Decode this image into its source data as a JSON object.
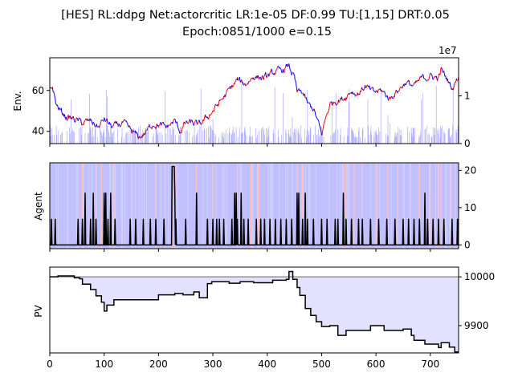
{
  "figure": {
    "title_line1": "[HES] RL:ddpg Net:actorcritic LR:1e-05 DF:0.99 TU:[1,15] DRT:0.05",
    "title_line2": "Epoch:0851/1000 e=0.15"
  },
  "colors": {
    "price_up": "#ff0000",
    "price_down": "#0000ff",
    "volume": "#aaaaff",
    "agent_bg": "#c0c0ff",
    "agent_stripe": "#ffc0c0",
    "agent_line": "#000000",
    "pv_line": "#000000",
    "pv_fill": "#e2e2ff",
    "baseline": "#808080"
  },
  "chart_data": [
    {
      "type": "line",
      "name": "env",
      "ylabel": "Env.",
      "xlim": [
        0,
        752
      ],
      "ylim": [
        34,
        76
      ],
      "yticks": [
        "40",
        "60"
      ],
      "y2ticks": [
        "0",
        "1"
      ],
      "y2_offset_label": "1e7",
      "y2lim": [
        0,
        18000000
      ],
      "price_anchors": [
        [
          0,
          61
        ],
        [
          5,
          62
        ],
        [
          12,
          53
        ],
        [
          20,
          50
        ],
        [
          30,
          47
        ],
        [
          45,
          46
        ],
        [
          60,
          44
        ],
        [
          75,
          45
        ],
        [
          90,
          42
        ],
        [
          100,
          46
        ],
        [
          115,
          42
        ],
        [
          135,
          44
        ],
        [
          150,
          40
        ],
        [
          165,
          37
        ],
        [
          175,
          39
        ],
        [
          190,
          44
        ],
        [
          200,
          43
        ],
        [
          215,
          42
        ],
        [
          230,
          45
        ],
        [
          240,
          40
        ],
        [
          250,
          44
        ],
        [
          262,
          44
        ],
        [
          275,
          43
        ],
        [
          290,
          47
        ],
        [
          300,
          50
        ],
        [
          315,
          55
        ],
        [
          330,
          60
        ],
        [
          345,
          65
        ],
        [
          360,
          63
        ],
        [
          375,
          67
        ],
        [
          395,
          66
        ],
        [
          415,
          69
        ],
        [
          430,
          70
        ],
        [
          440,
          72
        ],
        [
          450,
          66
        ],
        [
          455,
          59
        ],
        [
          465,
          59
        ],
        [
          475,
          53
        ],
        [
          485,
          51
        ],
        [
          495,
          43
        ],
        [
          500,
          38
        ],
        [
          505,
          44
        ],
        [
          515,
          53
        ],
        [
          525,
          55
        ],
        [
          540,
          56
        ],
        [
          555,
          60
        ],
        [
          565,
          58
        ],
        [
          580,
          62
        ],
        [
          595,
          59
        ],
        [
          610,
          60
        ],
        [
          625,
          56
        ],
        [
          640,
          60
        ],
        [
          655,
          64
        ],
        [
          670,
          62
        ],
        [
          685,
          66
        ],
        [
          700,
          67
        ],
        [
          715,
          66
        ],
        [
          720,
          70
        ],
        [
          730,
          66
        ],
        [
          740,
          61
        ],
        [
          752,
          67
        ]
      ],
      "volume_note": "volume bars on secondary axis, mostly 0-4e6 with spikes up to ~1.3e7"
    },
    {
      "type": "line",
      "name": "agent",
      "ylabel": "Agent",
      "xlim": [
        0,
        752
      ],
      "ylim": [
        -1,
        22
      ],
      "y2ticks": [
        "0",
        "10",
        "20"
      ],
      "baseline_value": 0,
      "spikes": [
        [
          3,
          7
        ],
        [
          10,
          7
        ],
        [
          52,
          7
        ],
        [
          60,
          7
        ],
        [
          65,
          14
        ],
        [
          75,
          7
        ],
        [
          80,
          14
        ],
        [
          85,
          7
        ],
        [
          100,
          14
        ],
        [
          103,
          14
        ],
        [
          107,
          7
        ],
        [
          112,
          14
        ],
        [
          120,
          7
        ],
        [
          148,
          7
        ],
        [
          158,
          7
        ],
        [
          172,
          7
        ],
        [
          185,
          7
        ],
        [
          195,
          7
        ],
        [
          210,
          7
        ],
        [
          225,
          21
        ],
        [
          226,
          21
        ],
        [
          227,
          21
        ],
        [
          228,
          21
        ],
        [
          229,
          21
        ],
        [
          230,
          14
        ],
        [
          232,
          7
        ],
        [
          250,
          7
        ],
        [
          270,
          14
        ],
        [
          290,
          7
        ],
        [
          300,
          7
        ],
        [
          307,
          7
        ],
        [
          312,
          7
        ],
        [
          320,
          7
        ],
        [
          335,
          7
        ],
        [
          340,
          14
        ],
        [
          343,
          14
        ],
        [
          345,
          7
        ],
        [
          352,
          14
        ],
        [
          357,
          7
        ],
        [
          365,
          7
        ],
        [
          380,
          7
        ],
        [
          388,
          7
        ],
        [
          395,
          7
        ],
        [
          405,
          7
        ],
        [
          415,
          7
        ],
        [
          425,
          7
        ],
        [
          435,
          7
        ],
        [
          445,
          7
        ],
        [
          455,
          14
        ],
        [
          458,
          14
        ],
        [
          465,
          7
        ],
        [
          470,
          14
        ],
        [
          474,
          7
        ],
        [
          485,
          7
        ],
        [
          500,
          7
        ],
        [
          510,
          7
        ],
        [
          525,
          7
        ],
        [
          530,
          7
        ],
        [
          540,
          14
        ],
        [
          545,
          7
        ],
        [
          555,
          7
        ],
        [
          568,
          7
        ],
        [
          575,
          7
        ],
        [
          590,
          7
        ],
        [
          605,
          7
        ],
        [
          620,
          7
        ],
        [
          635,
          7
        ],
        [
          650,
          7
        ],
        [
          660,
          7
        ],
        [
          670,
          7
        ],
        [
          680,
          7
        ],
        [
          690,
          14
        ],
        [
          695,
          7
        ],
        [
          705,
          7
        ],
        [
          715,
          7
        ],
        [
          725,
          7
        ],
        [
          740,
          7
        ],
        [
          750,
          7
        ]
      ],
      "stripes_at": [
        60,
        85,
        95,
        118,
        195,
        212,
        225,
        232,
        270,
        300,
        345,
        370,
        385,
        455,
        465,
        540,
        545,
        560,
        575,
        600,
        622,
        640,
        680,
        700,
        715,
        720,
        738
      ]
    },
    {
      "type": "area",
      "name": "pv",
      "ylabel": "PV",
      "xlim": [
        0,
        752
      ],
      "ylim": [
        9844,
        10020
      ],
      "y2ticks": [
        "9900",
        "10000"
      ],
      "xticks": [
        "0",
        "100",
        "200",
        "300",
        "400",
        "500",
        "600",
        "700"
      ],
      "baseline_value": 10000,
      "steps": [
        [
          0,
          10000
        ],
        [
          15,
          10002
        ],
        [
          45,
          9998
        ],
        [
          55,
          9996
        ],
        [
          60,
          9985
        ],
        [
          75,
          9974
        ],
        [
          85,
          9961
        ],
        [
          95,
          9948
        ],
        [
          100,
          9930
        ],
        [
          105,
          9942
        ],
        [
          118,
          9953
        ],
        [
          135,
          9953
        ],
        [
          160,
          9953
        ],
        [
          195,
          9953
        ],
        [
          200,
          9963
        ],
        [
          220,
          9963
        ],
        [
          230,
          9966
        ],
        [
          245,
          9963
        ],
        [
          265,
          9969
        ],
        [
          275,
          9957
        ],
        [
          290,
          9986
        ],
        [
          298,
          9990
        ],
        [
          330,
          9987
        ],
        [
          350,
          9990
        ],
        [
          375,
          9988
        ],
        [
          410,
          9993
        ],
        [
          435,
          9995
        ],
        [
          440,
          10011
        ],
        [
          447,
          9995
        ],
        [
          455,
          9978
        ],
        [
          460,
          9962
        ],
        [
          470,
          9935
        ],
        [
          480,
          9921
        ],
        [
          490,
          9908
        ],
        [
          500,
          9898
        ],
        [
          515,
          9900
        ],
        [
          530,
          9880
        ],
        [
          545,
          9890
        ],
        [
          560,
          9890
        ],
        [
          590,
          9900
        ],
        [
          615,
          9890
        ],
        [
          630,
          9890
        ],
        [
          650,
          9893
        ],
        [
          665,
          9880
        ],
        [
          670,
          9870
        ],
        [
          690,
          9862
        ],
        [
          700,
          9862
        ],
        [
          715,
          9855
        ],
        [
          720,
          9865
        ],
        [
          735,
          9856
        ],
        [
          745,
          9846
        ],
        [
          752,
          9846
        ]
      ]
    }
  ]
}
